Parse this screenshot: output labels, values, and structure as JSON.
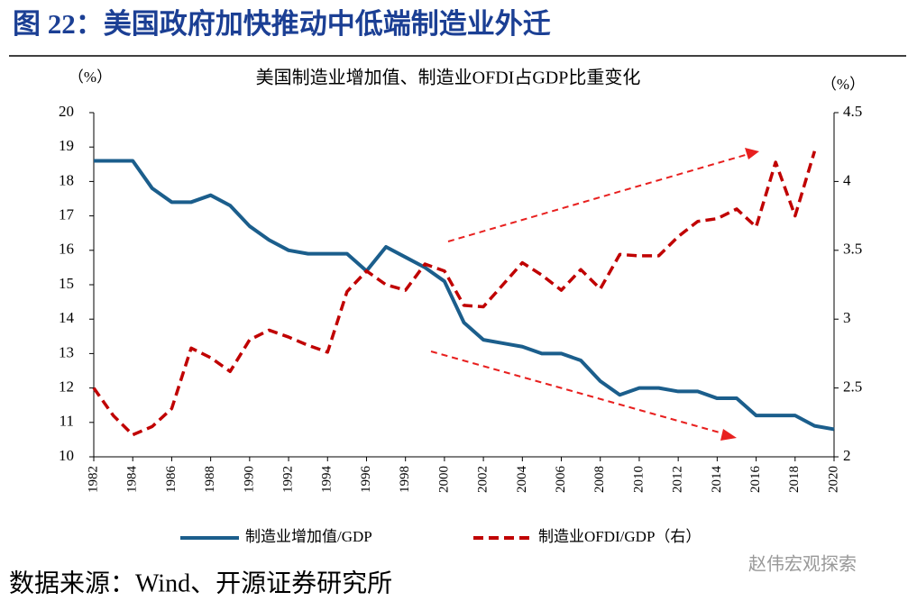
{
  "header": "图 22：美国政府加快推动中低端制造业外迁",
  "source": "数据来源：Wind、开源证券研究所",
  "watermark": "赵伟宏观探索",
  "chart_data": {
    "type": "line",
    "title": "美国制造业增加值、制造业OFDI占GDP比重变化",
    "y_label": "（%）",
    "y2_label": "（%）",
    "x": [
      1982,
      1983,
      1984,
      1985,
      1986,
      1987,
      1988,
      1989,
      1990,
      1991,
      1992,
      1993,
      1994,
      1995,
      1996,
      1997,
      1998,
      1999,
      2000,
      2001,
      2002,
      2003,
      2004,
      2005,
      2006,
      2007,
      2008,
      2009,
      2010,
      2011,
      2012,
      2013,
      2014,
      2015,
      2016,
      2017,
      2018,
      2019,
      2020
    ],
    "xlim": [
      1982,
      2020
    ],
    "xticks": [
      1982,
      1984,
      1986,
      1988,
      1990,
      1992,
      1994,
      1996,
      1998,
      2000,
      2002,
      2004,
      2006,
      2008,
      2010,
      2012,
      2014,
      2016,
      2018,
      2020
    ],
    "ylim": [
      10,
      20
    ],
    "yticks": [
      10,
      11,
      12,
      13,
      14,
      15,
      16,
      17,
      18,
      19,
      20
    ],
    "y2lim": [
      2,
      4.5
    ],
    "y2ticks": [
      2,
      2.5,
      3,
      3.5,
      4,
      4.5
    ],
    "series": [
      {
        "name": "制造业增加值/GDP",
        "color": "#1b5e8c",
        "dashed": false,
        "values": [
          18.6,
          18.6,
          18.6,
          17.8,
          17.4,
          17.4,
          17.6,
          17.3,
          16.7,
          16.3,
          16.0,
          15.9,
          15.9,
          15.9,
          15.4,
          16.1,
          15.8,
          15.5,
          15.1,
          13.9,
          13.4,
          13.3,
          13.2,
          13.0,
          13.0,
          12.8,
          12.2,
          11.8,
          12.0,
          12.0,
          11.9,
          11.9,
          11.7,
          11.7,
          11.2,
          11.2,
          11.2,
          10.9,
          10.8
        ]
      },
      {
        "name": "制造业OFDI/GDP（右）",
        "color": "#c00000",
        "dashed": true,
        "axis": "y2",
        "values": [
          2.5,
          2.3,
          2.16,
          2.22,
          2.35,
          2.79,
          2.72,
          2.62,
          2.85,
          2.92,
          2.87,
          2.81,
          2.76,
          3.2,
          3.35,
          3.25,
          3.21,
          3.4,
          3.35,
          3.1,
          3.09,
          3.25,
          3.41,
          3.32,
          3.21,
          3.36,
          3.22,
          3.47,
          3.46,
          3.46,
          3.6,
          3.71,
          3.73,
          3.8,
          3.67,
          4.14,
          3.75,
          4.22,
          null
        ]
      }
    ]
  }
}
